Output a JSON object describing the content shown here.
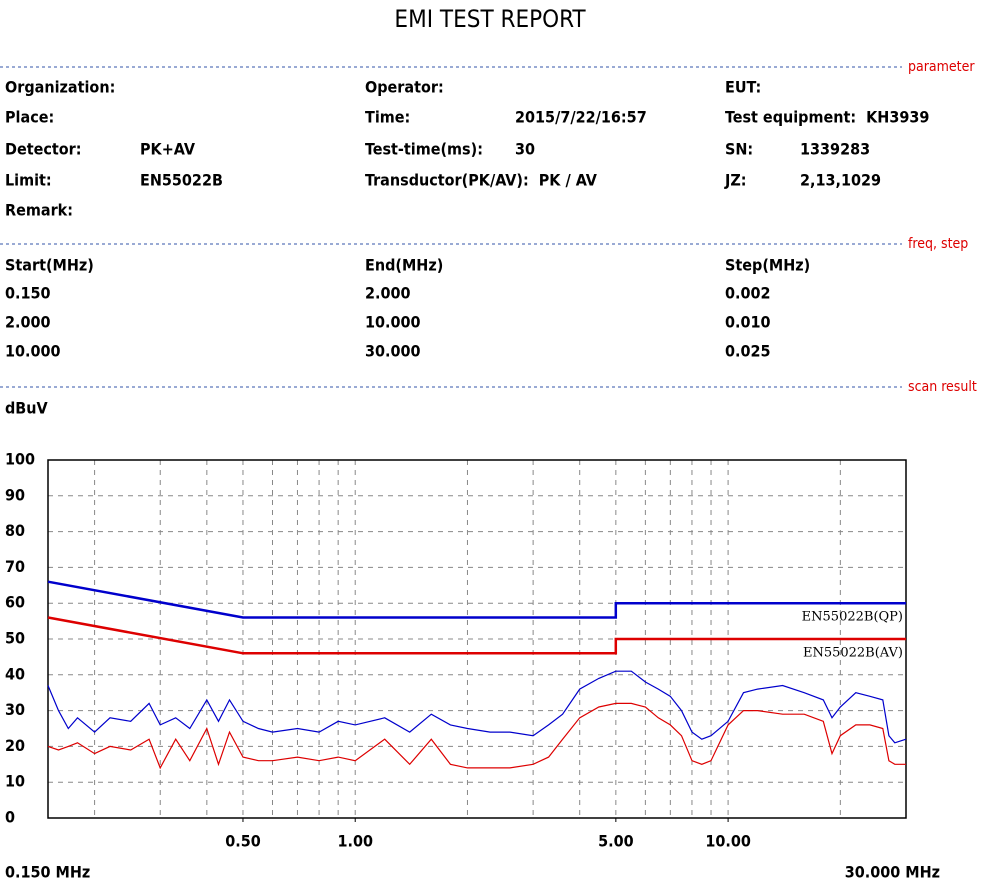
{
  "header": {
    "title": "EMI TEST REPORT"
  },
  "sections": {
    "parameter": "parameter",
    "freq_step": "freq, step",
    "scan_result": "scan result"
  },
  "parameters": {
    "columns": [
      [
        {
          "label": "Organization:"
        },
        {
          "label": "Place:"
        },
        {
          "label": "Detector:",
          "value": "PK+AV"
        },
        {
          "label": "Limit:",
          "value": "EN55022B"
        },
        {
          "label": "Remark:"
        }
      ],
      [
        {
          "label": "Operator:"
        },
        {
          "label": "Time:",
          "value": "2015/7/22/16:57"
        },
        {
          "label": "Test-time(ms):",
          "value": "30"
        },
        {
          "label": "Transductor(PK/AV):",
          "value": "PK / AV"
        }
      ],
      [
        {
          "label": "EUT:"
        },
        {
          "label": "Test equipment:",
          "value": "KH3939"
        },
        {
          "label": "SN:",
          "value": "1339283"
        },
        {
          "label": "JZ:",
          "value": "2,13,1029"
        }
      ]
    ]
  },
  "freq_table": {
    "header": [
      "Start(MHz)",
      "End(MHz)",
      "Step(MHz)"
    ],
    "rows": [
      [
        "0.150",
        "2.000",
        "0.002"
      ],
      [
        "2.000",
        "10.000",
        "0.010"
      ],
      [
        "10.000",
        "30.000",
        "0.025"
      ]
    ]
  },
  "chart_data": {
    "type": "line",
    "y_label": "dBuV",
    "x_log": true,
    "x_start_label": "0.150 MHz",
    "x_end_label": "30.000 MHz",
    "xlim": [
      0.15,
      30
    ],
    "ylim": [
      0,
      100
    ],
    "xticks": [
      {
        "value": 0.5,
        "label": "0.50"
      },
      {
        "value": 1,
        "label": "1.00"
      },
      {
        "value": 5,
        "label": "5.00"
      },
      {
        "value": 10,
        "label": "10.00"
      }
    ],
    "yticks": [
      0,
      10,
      20,
      30,
      40,
      50,
      60,
      70,
      80,
      90,
      100
    ],
    "xgrid": [
      0.2,
      0.3,
      0.4,
      0.5,
      0.6,
      0.7,
      0.8,
      0.9,
      1,
      2,
      3,
      4,
      5,
      6,
      7,
      8,
      9,
      10,
      20
    ],
    "grid": true,
    "series": [
      {
        "name": "EN55022B(QP)",
        "color": "#0000cc",
        "x": [
          0.15,
          0.5,
          5,
          5,
          30
        ],
        "values": [
          66,
          56,
          56,
          60,
          60
        ]
      },
      {
        "name": "EN55022B(AV)",
        "color": "#dd0000",
        "x": [
          0.15,
          0.5,
          5,
          5,
          30
        ],
        "values": [
          56,
          46,
          46,
          50,
          50
        ]
      },
      {
        "color": "#0000cc",
        "x": [
          0.15,
          0.16,
          0.17,
          0.18,
          0.2,
          0.22,
          0.25,
          0.28,
          0.3,
          0.33,
          0.36,
          0.4,
          0.43,
          0.46,
          0.5,
          0.55,
          0.6,
          0.7,
          0.8,
          0.9,
          1.0,
          1.2,
          1.4,
          1.6,
          1.8,
          2.0,
          2.3,
          2.6,
          3.0,
          3.3,
          3.6,
          4.0,
          4.5,
          5.0,
          5.5,
          6.0,
          6.5,
          7.0,
          7.5,
          8.0,
          8.5,
          9.0,
          10,
          11,
          12,
          14,
          16,
          18,
          19,
          20,
          22,
          24,
          26,
          27,
          28,
          30
        ],
        "values": [
          37,
          30,
          25,
          28,
          24,
          28,
          27,
          32,
          26,
          28,
          25,
          33,
          27,
          33,
          27,
          25,
          24,
          25,
          24,
          27,
          26,
          28,
          24,
          29,
          26,
          25,
          24,
          24,
          23,
          26,
          29,
          36,
          39,
          41,
          41,
          38,
          36,
          34,
          30,
          24,
          22,
          23,
          27,
          35,
          36,
          37,
          35,
          33,
          28,
          31,
          35,
          34,
          33,
          23,
          21,
          22
        ]
      },
      {
        "color": "#dd0000",
        "x": [
          0.15,
          0.16,
          0.17,
          0.18,
          0.2,
          0.22,
          0.25,
          0.28,
          0.3,
          0.33,
          0.36,
          0.4,
          0.43,
          0.46,
          0.5,
          0.55,
          0.6,
          0.7,
          0.8,
          0.9,
          1.0,
          1.2,
          1.4,
          1.6,
          1.8,
          2.0,
          2.3,
          2.6,
          3.0,
          3.3,
          3.6,
          4.0,
          4.5,
          5.0,
          5.5,
          6.0,
          6.5,
          7.0,
          7.5,
          8.0,
          8.5,
          9.0,
          10,
          11,
          12,
          14,
          16,
          18,
          19,
          20,
          22,
          24,
          26,
          27,
          28,
          30
        ],
        "values": [
          20,
          19,
          20,
          21,
          18,
          20,
          19,
          22,
          14,
          22,
          16,
          25,
          15,
          24,
          17,
          16,
          16,
          17,
          16,
          17,
          16,
          22,
          15,
          22,
          15,
          14,
          14,
          14,
          15,
          17,
          22,
          28,
          31,
          32,
          32,
          31,
          28,
          26,
          23,
          16,
          15,
          16,
          26,
          30,
          30,
          29,
          29,
          27,
          18,
          23,
          26,
          26,
          25,
          16,
          15,
          15
        ]
      }
    ]
  }
}
